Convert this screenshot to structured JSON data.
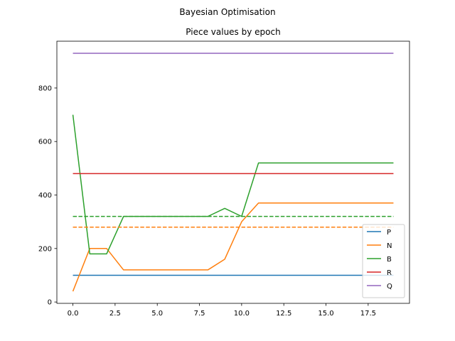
{
  "chart_data": {
    "type": "line",
    "suptitle": "Bayesian Optimisation",
    "title": "Piece values by epoch",
    "xlabel": "",
    "ylabel": "",
    "xlim": [
      -0.95,
      19.95
    ],
    "ylim": [
      -5,
      975
    ],
    "xticks": [
      0.0,
      2.5,
      5.0,
      7.5,
      10.0,
      12.5,
      15.0,
      17.5
    ],
    "xtick_labels": [
      "0.0",
      "2.5",
      "5.0",
      "7.5",
      "10.0",
      "12.5",
      "15.0",
      "17.5"
    ],
    "yticks": [
      0,
      200,
      400,
      600,
      800
    ],
    "ytick_labels": [
      "0",
      "200",
      "400",
      "600",
      "800"
    ],
    "grid": false,
    "legend_position": "lower-right",
    "x": [
      0,
      1,
      2,
      3,
      4,
      5,
      6,
      7,
      8,
      9,
      10,
      11,
      12,
      13,
      14,
      15,
      16,
      17,
      18,
      19
    ],
    "series": [
      {
        "name": "P",
        "color": "#1f77b4",
        "style": "solid",
        "values": [
          100,
          100,
          100,
          100,
          100,
          100,
          100,
          100,
          100,
          100,
          100,
          100,
          100,
          100,
          100,
          100,
          100,
          100,
          100,
          100
        ]
      },
      {
        "name": "N",
        "color": "#ff7f0e",
        "style": "solid",
        "values": [
          40,
          200,
          200,
          120,
          120,
          120,
          120,
          120,
          120,
          160,
          300,
          370,
          370,
          370,
          370,
          370,
          370,
          370,
          370,
          370
        ]
      },
      {
        "name": "B",
        "color": "#2ca02c",
        "style": "solid",
        "values": [
          700,
          180,
          180,
          320,
          320,
          320,
          320,
          320,
          320,
          350,
          320,
          520,
          520,
          520,
          520,
          520,
          520,
          520,
          520,
          520
        ]
      },
      {
        "name": "R",
        "color": "#d62728",
        "style": "solid",
        "values": [
          480,
          480,
          480,
          480,
          480,
          480,
          480,
          480,
          480,
          480,
          480,
          480,
          480,
          480,
          480,
          480,
          480,
          480,
          480,
          480
        ]
      },
      {
        "name": "Q",
        "color": "#9467bd",
        "style": "solid",
        "values": [
          930,
          930,
          930,
          930,
          930,
          930,
          930,
          930,
          930,
          930,
          930,
          930,
          930,
          930,
          930,
          930,
          930,
          930,
          930,
          930
        ]
      },
      {
        "color": "#2ca02c",
        "style": "dashed",
        "values": [
          320,
          320,
          320,
          320,
          320,
          320,
          320,
          320,
          320,
          320,
          320,
          320,
          320,
          320,
          320,
          320,
          320,
          320,
          320,
          320
        ]
      },
      {
        "color": "#ff7f0e",
        "style": "dashed",
        "values": [
          280,
          280,
          280,
          280,
          280,
          280,
          280,
          280,
          280,
          280,
          280,
          280,
          280,
          280,
          280,
          280,
          280,
          280,
          280,
          280
        ]
      }
    ],
    "legend": [
      "P",
      "N",
      "B",
      "R",
      "Q"
    ]
  }
}
